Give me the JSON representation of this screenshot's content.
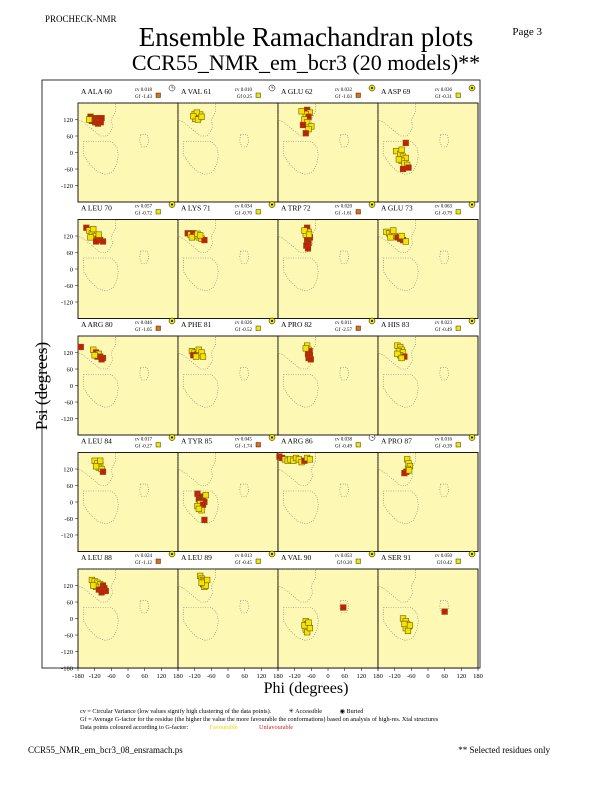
{
  "header": {
    "program": "PROCHECK-NMR",
    "page_label": "Page  3",
    "title": "Ensemble Ramachandran plots",
    "subtitle": "CCR55_NMR_em_bcr3 (20 models)**"
  },
  "colors": {
    "panel_bg": "#fdf8b4",
    "favourable": "#f2e600",
    "unfavourable": "#cc1a10",
    "point_edge": "#7a5a00",
    "region_dots": "#666666"
  },
  "chart_data": {
    "type": "scatter",
    "description_of_axes": "each panel is a Ramachandran plot",
    "xlabel": "Phi (degrees)",
    "ylabel": "Psi (degrees)",
    "xlim": [
      -180,
      180
    ],
    "ylim": [
      -180,
      180
    ],
    "xticks": [
      -180,
      -120,
      -60,
      0,
      60,
      120,
      180
    ],
    "yticks": [
      120,
      60,
      0,
      -60,
      -120,
      -180
    ],
    "xtick_labels": [
      "-180",
      "-120",
      "-60",
      "0",
      "60",
      "120",
      "180"
    ],
    "ytick_labels": [
      "120",
      "60",
      "0",
      "-60",
      "-120",
      "-180"
    ],
    "panels": [
      {
        "label": "A ALA 60",
        "cv": "cv 0.018",
        "gf": "Gf -1.43",
        "accessibility": "accessible",
        "points": [
          [
            -135,
            130,
            "u"
          ],
          [
            -125,
            125,
            "u"
          ],
          [
            -115,
            120,
            "u"
          ],
          [
            -105,
            125,
            "u"
          ],
          [
            -130,
            115,
            "u"
          ],
          [
            -118,
            110,
            "u"
          ],
          [
            -108,
            105,
            "u"
          ],
          [
            -98,
            110,
            "u"
          ],
          [
            -140,
            120,
            "f"
          ],
          [
            -95,
            125,
            "u"
          ]
        ]
      },
      {
        "label": "A VAL 61",
        "cv": "cv 0.010",
        "gf": "Gf 0.25",
        "accessibility": "accessible",
        "points": [
          [
            -120,
            140,
            "f"
          ],
          [
            -115,
            130,
            "f"
          ],
          [
            -110,
            135,
            "f"
          ],
          [
            -105,
            128,
            "f"
          ],
          [
            -118,
            122,
            "f"
          ],
          [
            -100,
            138,
            "f"
          ],
          [
            -112,
            145,
            "f"
          ],
          [
            -125,
            132,
            "f"
          ],
          [
            -108,
            120,
            "f"
          ],
          [
            -95,
            130,
            "f"
          ]
        ]
      },
      {
        "label": "A GLU 62",
        "cv": "cv 0.032",
        "gf": "Gf -1.03",
        "accessibility": "buried",
        "points": [
          [
            -75,
            155,
            "u"
          ],
          [
            -65,
            145,
            "f"
          ],
          [
            -80,
            140,
            "f"
          ],
          [
            -70,
            130,
            "u"
          ],
          [
            -85,
            120,
            "f"
          ],
          [
            -75,
            110,
            "f"
          ],
          [
            -90,
            100,
            "u"
          ],
          [
            -60,
            95,
            "f"
          ],
          [
            -70,
            85,
            "f"
          ],
          [
            -80,
            70,
            "u"
          ],
          [
            -95,
            150,
            "f"
          ]
        ]
      },
      {
        "label": "A ASP 69",
        "cv": "cv 0.036",
        "gf": "Gf -0.31",
        "accessibility": "buried",
        "points": [
          [
            -115,
            5,
            "f"
          ],
          [
            -100,
            -5,
            "f"
          ],
          [
            -90,
            -15,
            "f"
          ],
          [
            -80,
            -20,
            "f"
          ],
          [
            -95,
            -30,
            "f"
          ],
          [
            -85,
            -40,
            "f"
          ],
          [
            -75,
            -45,
            "f"
          ],
          [
            -105,
            -25,
            "f"
          ],
          [
            -70,
            -55,
            "u"
          ],
          [
            -90,
            -60,
            "u"
          ],
          [
            -80,
            35,
            "u"
          ],
          [
            -95,
            10,
            "f"
          ]
        ]
      },
      {
        "label": "A LEU 70",
        "cv": "cv 0.057",
        "gf": "Gf -0.72",
        "accessibility": "buried",
        "points": [
          [
            -150,
            150,
            "u"
          ],
          [
            -140,
            140,
            "f"
          ],
          [
            -130,
            130,
            "f"
          ],
          [
            -120,
            120,
            "f"
          ],
          [
            -110,
            110,
            "u"
          ],
          [
            -100,
            105,
            "u"
          ],
          [
            -90,
            100,
            "u"
          ],
          [
            -125,
            145,
            "f"
          ],
          [
            -135,
            115,
            "f"
          ],
          [
            -105,
            125,
            "f"
          ],
          [
            -115,
            100,
            "u"
          ]
        ]
      },
      {
        "label": "A LYS 71",
        "cv": "cv 0.034",
        "gf": "Gf -0.70",
        "accessibility": "buried",
        "points": [
          [
            -145,
            130,
            "u"
          ],
          [
            -135,
            125,
            "f"
          ],
          [
            -125,
            130,
            "u"
          ],
          [
            -115,
            120,
            "f"
          ],
          [
            -105,
            115,
            "f"
          ],
          [
            -95,
            110,
            "f"
          ],
          [
            -85,
            105,
            "u"
          ],
          [
            -130,
            115,
            "f"
          ],
          [
            -110,
            128,
            "f"
          ],
          [
            -100,
            122,
            "f"
          ]
        ]
      },
      {
        "label": "A TRP 72",
        "cv": "cv 0.020",
        "gf": "Gf -1.61",
        "accessibility": "buried",
        "points": [
          [
            -75,
            150,
            "u"
          ],
          [
            -70,
            135,
            "f"
          ],
          [
            -80,
            125,
            "f"
          ],
          [
            -65,
            115,
            "u"
          ],
          [
            -75,
            105,
            "u"
          ],
          [
            -70,
            95,
            "u"
          ],
          [
            -78,
            85,
            "u"
          ],
          [
            -72,
            75,
            "u"
          ],
          [
            -85,
            140,
            "f"
          ],
          [
            -68,
            125,
            "f"
          ]
        ]
      },
      {
        "label": "A GLU 73",
        "cv": "cv 0.063",
        "gf": "Gf -0.79",
        "accessibility": "buried",
        "points": [
          [
            -150,
            135,
            "f"
          ],
          [
            -140,
            130,
            "f"
          ],
          [
            -130,
            125,
            "f"
          ],
          [
            -120,
            120,
            "f"
          ],
          [
            -110,
            115,
            "u"
          ],
          [
            -100,
            110,
            "u"
          ],
          [
            -90,
            105,
            "u"
          ],
          [
            -80,
            100,
            "f"
          ],
          [
            -125,
            140,
            "f"
          ],
          [
            -95,
            120,
            "f"
          ],
          [
            -135,
            115,
            "f"
          ]
        ]
      },
      {
        "label": "A ARG 80",
        "cv": "cv 0.046",
        "gf": "Gf -1.05",
        "accessibility": "buried",
        "points": [
          [
            -170,
            140,
            "u"
          ],
          [
            -125,
            130,
            "f"
          ],
          [
            -115,
            120,
            "u"
          ],
          [
            -105,
            115,
            "f"
          ],
          [
            -100,
            105,
            "u"
          ],
          [
            -90,
            100,
            "u"
          ],
          [
            -110,
            105,
            "u"
          ],
          [
            -120,
            110,
            "f"
          ],
          [
            -95,
            95,
            "u"
          ]
        ]
      },
      {
        "label": "A PHE 81",
        "cv": "cv 0.026",
        "gf": "Gf -0.52",
        "accessibility": "buried",
        "points": [
          [
            -130,
            125,
            "f"
          ],
          [
            -120,
            120,
            "f"
          ],
          [
            -110,
            115,
            "u"
          ],
          [
            -100,
            110,
            "f"
          ],
          [
            -125,
            110,
            "u"
          ],
          [
            -115,
            105,
            "f"
          ],
          [
            -105,
            130,
            "f"
          ],
          [
            -95,
            120,
            "f"
          ],
          [
            -90,
            105,
            "f"
          ]
        ]
      },
      {
        "label": "A PRO 82",
        "cv": "cv 0.011",
        "gf": "Gf -2.57",
        "accessibility": "buried",
        "points": [
          [
            -75,
            145,
            "f"
          ],
          [
            -70,
            130,
            "f"
          ],
          [
            -68,
            120,
            "u"
          ],
          [
            -65,
            110,
            "u"
          ],
          [
            -70,
            100,
            "u"
          ],
          [
            -62,
            95,
            "u"
          ],
          [
            -72,
            115,
            "u"
          ],
          [
            -66,
            125,
            "u"
          ],
          [
            -80,
            135,
            "f"
          ]
        ]
      },
      {
        "label": "A HIS 83",
        "cv": "cv 0.023",
        "gf": "Gf -0.49",
        "accessibility": "buried",
        "points": [
          [
            -110,
            145,
            "f"
          ],
          [
            -100,
            140,
            "f"
          ],
          [
            -95,
            130,
            "f"
          ],
          [
            -105,
            125,
            "f"
          ],
          [
            -90,
            120,
            "f"
          ],
          [
            -100,
            110,
            "f"
          ],
          [
            -85,
            105,
            "u"
          ],
          [
            -110,
            115,
            "f"
          ],
          [
            -95,
            100,
            "f"
          ]
        ]
      },
      {
        "label": "A LEU 84",
        "cv": "cv 0.017",
        "gf": "Gf -0.27",
        "accessibility": "buried",
        "points": [
          [
            -120,
            150,
            "f"
          ],
          [
            -110,
            140,
            "f"
          ],
          [
            -100,
            135,
            "f"
          ],
          [
            -105,
            125,
            "f"
          ],
          [
            -95,
            120,
            "f"
          ],
          [
            -115,
            130,
            "f"
          ],
          [
            -90,
            110,
            "u"
          ],
          [
            -100,
            150,
            "f"
          ]
        ]
      },
      {
        "label": "A TYR 85",
        "cv": "cv 0.045",
        "gf": "Gf -1.74",
        "accessibility": "buried",
        "points": [
          [
            -110,
            30,
            "u"
          ],
          [
            -100,
            20,
            "u"
          ],
          [
            -90,
            15,
            "u"
          ],
          [
            -105,
            10,
            "u"
          ],
          [
            -95,
            5,
            "u"
          ],
          [
            -85,
            0,
            "u"
          ],
          [
            -100,
            -5,
            "f"
          ],
          [
            -110,
            -15,
            "f"
          ],
          [
            -90,
            -10,
            "u"
          ],
          [
            -95,
            -30,
            "f"
          ],
          [
            -105,
            -25,
            "f"
          ],
          [
            -85,
            -65,
            "u"
          ],
          [
            -80,
            25,
            "f"
          ]
        ]
      },
      {
        "label": "A ARG 86",
        "cv": "cv 0.038",
        "gf": "Gf -0.49",
        "accessibility": "accessible",
        "points": [
          [
            -175,
            165,
            "u"
          ],
          [
            -165,
            160,
            "u"
          ],
          [
            -155,
            155,
            "f"
          ],
          [
            -145,
            150,
            "f"
          ],
          [
            -135,
            155,
            "f"
          ],
          [
            -125,
            150,
            "f"
          ],
          [
            -115,
            160,
            "f"
          ],
          [
            -105,
            155,
            "f"
          ],
          [
            -95,
            145,
            "f"
          ],
          [
            -85,
            150,
            "u"
          ],
          [
            -75,
            160,
            "f"
          ],
          [
            -65,
            155,
            "f"
          ]
        ]
      },
      {
        "label": "A PRO 87",
        "cv": "cv 0.016",
        "gf": "Gf -0.39",
        "accessibility": "buried",
        "points": [
          [
            -75,
            155,
            "f"
          ],
          [
            -70,
            140,
            "f"
          ],
          [
            -65,
            130,
            "f"
          ],
          [
            -72,
            120,
            "f"
          ],
          [
            -78,
            110,
            "u"
          ],
          [
            -85,
            105,
            "u"
          ],
          [
            -68,
            115,
            "f"
          ]
        ]
      },
      {
        "label": "A LEU 88",
        "cv": "cv 0.024",
        "gf": "Gf -1.12",
        "accessibility": "buried",
        "points": [
          [
            -130,
            140,
            "f"
          ],
          [
            -120,
            135,
            "f"
          ],
          [
            -110,
            130,
            "f"
          ],
          [
            -100,
            125,
            "f"
          ],
          [
            -90,
            120,
            "u"
          ],
          [
            -85,
            110,
            "u"
          ],
          [
            -80,
            100,
            "u"
          ],
          [
            -115,
            115,
            "f"
          ],
          [
            -105,
            105,
            "u"
          ],
          [
            -95,
            95,
            "u"
          ],
          [
            -125,
            120,
            "f"
          ]
        ]
      },
      {
        "label": "A LEU 89",
        "cv": "cv 0.013",
        "gf": "Gf -0.45",
        "accessibility": "buried",
        "points": [
          [
            -100,
            155,
            "f"
          ],
          [
            -95,
            145,
            "f"
          ],
          [
            -90,
            140,
            "f"
          ],
          [
            -85,
            135,
            "f"
          ],
          [
            -80,
            130,
            "f"
          ],
          [
            -90,
            125,
            "u"
          ],
          [
            -85,
            115,
            "f"
          ],
          [
            -80,
            120,
            "f"
          ],
          [
            -75,
            140,
            "f"
          ],
          [
            -95,
            130,
            "f"
          ]
        ]
      },
      {
        "label": "A VAL 90",
        "cv": "cv 0.053",
        "gf": "Gf 0.20",
        "accessibility": "buried",
        "points": [
          [
            55,
            40,
            "u"
          ],
          [
            -80,
            -10,
            "f"
          ],
          [
            -75,
            -20,
            "f"
          ],
          [
            -70,
            -30,
            "f"
          ],
          [
            -80,
            -40,
            "f"
          ],
          [
            -75,
            -50,
            "f"
          ],
          [
            -65,
            -35,
            "f"
          ],
          [
            -85,
            -25,
            "f"
          ],
          [
            -70,
            -15,
            "f"
          ]
        ]
      },
      {
        "label": "A SER 91",
        "cv": "cv 0.050",
        "gf": "Gf 0.42",
        "accessibility": "buried",
        "points": [
          [
            60,
            25,
            "u"
          ],
          [
            -90,
            0,
            "f"
          ],
          [
            -80,
            -10,
            "f"
          ],
          [
            -75,
            -20,
            "f"
          ],
          [
            -70,
            -30,
            "f"
          ],
          [
            -80,
            -35,
            "f"
          ],
          [
            -72,
            -45,
            "f"
          ],
          [
            -85,
            -20,
            "f"
          ],
          [
            -65,
            -25,
            "f"
          ]
        ]
      }
    ]
  },
  "footer": {
    "cv_note": "cv = Circular Variance (low values signify high clustering of the data points).",
    "accessible_label": "Accessible",
    "buried_label": "Buried",
    "gf_note": "Gf = Average G-factor for the residue (the higher the value the more favourable the conformations) based on analysis of high-res. Xtal structures",
    "colour_note": "Data points coloured according to G-factor:",
    "favourable_label": "Favourable",
    "unfavourable_label": "Unfavourable",
    "filename": "CCR55_NMR_em_bcr3_08_ensramach.ps",
    "selected_note": "** Selected residues only"
  }
}
